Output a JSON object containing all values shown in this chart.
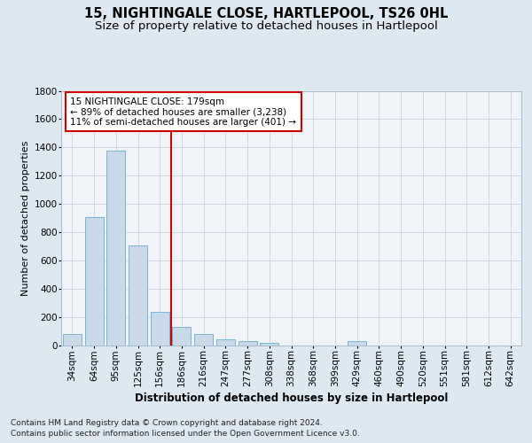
{
  "title1": "15, NIGHTINGALE CLOSE, HARTLEPOOL, TS26 0HL",
  "title2": "Size of property relative to detached houses in Hartlepool",
  "xlabel": "Distribution of detached houses by size in Hartlepool",
  "ylabel": "Number of detached properties",
  "categories": [
    "34sqm",
    "64sqm",
    "95sqm",
    "125sqm",
    "156sqm",
    "186sqm",
    "216sqm",
    "247sqm",
    "277sqm",
    "308sqm",
    "338sqm",
    "368sqm",
    "399sqm",
    "429sqm",
    "460sqm",
    "490sqm",
    "520sqm",
    "551sqm",
    "581sqm",
    "612sqm",
    "642sqm"
  ],
  "values": [
    80,
    910,
    1380,
    710,
    240,
    130,
    80,
    45,
    30,
    20,
    0,
    0,
    0,
    30,
    0,
    0,
    0,
    0,
    0,
    0,
    0
  ],
  "bar_color": "#c9d9e8",
  "bar_edge_color": "#6aaad4",
  "vline_x_bin": 5,
  "vline_color": "#cc0000",
  "annotation_line1": "15 NIGHTINGALE CLOSE: 179sqm",
  "annotation_line2": "← 89% of detached houses are smaller (3,238)",
  "annotation_line3": "11% of semi-detached houses are larger (401) →",
  "annotation_box_color": "#ffffff",
  "annotation_box_edge": "#cc0000",
  "ylim": [
    0,
    1800
  ],
  "yticks": [
    0,
    200,
    400,
    600,
    800,
    1000,
    1200,
    1400,
    1600,
    1800
  ],
  "bg_color": "#dde8f0",
  "plot_bg": "#f0f4f8",
  "grid_color": "#c0ccd8",
  "footer_line1": "Contains HM Land Registry data © Crown copyright and database right 2024.",
  "footer_line2": "Contains public sector information licensed under the Open Government Licence v3.0.",
  "title1_fontsize": 10.5,
  "title2_fontsize": 9.5,
  "xlabel_fontsize": 8.5,
  "ylabel_fontsize": 8,
  "tick_fontsize": 7.5,
  "annotation_fontsize": 7.5,
  "footer_fontsize": 6.5
}
